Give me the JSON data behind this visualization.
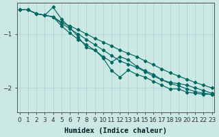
{
  "xlabel": "Humidex (Indice chaleur)",
  "bg_color": "#cce8e4",
  "line_color": "#006860",
  "grid_color": "#b0d8d4",
  "ylim": [
    -2.45,
    -0.42
  ],
  "xlim": [
    -0.3,
    23.3
  ],
  "yticks": [
    -2,
    -1
  ],
  "xticks": [
    0,
    1,
    2,
    3,
    4,
    5,
    6,
    7,
    8,
    9,
    10,
    11,
    12,
    13,
    14,
    15,
    16,
    17,
    18,
    19,
    20,
    21,
    22,
    23
  ],
  "x": [
    0,
    1,
    2,
    3,
    4,
    5,
    6,
    7,
    8,
    9,
    10,
    11,
    12,
    13,
    14,
    15,
    16,
    17,
    18,
    19,
    20,
    21,
    22,
    23
  ],
  "line1": [
    -0.55,
    -0.55,
    -0.62,
    -0.65,
    -0.68,
    -0.78,
    -0.85,
    -0.92,
    -1.0,
    -1.08,
    -1.15,
    -1.22,
    -1.3,
    -1.36,
    -1.42,
    -1.5,
    -1.57,
    -1.65,
    -1.72,
    -1.78,
    -1.84,
    -1.9,
    -1.95,
    -2.0
  ],
  "line2": [
    -0.55,
    -0.55,
    -0.62,
    -0.65,
    -0.68,
    -0.8,
    -0.9,
    -1.0,
    -1.1,
    -1.2,
    -1.3,
    -1.4,
    -1.5,
    -1.56,
    -1.62,
    -1.7,
    -1.78,
    -1.85,
    -1.92,
    -1.96,
    -2.02,
    -2.07,
    -2.1,
    -2.12
  ],
  "line3": [
    -0.55,
    -0.55,
    -0.62,
    -0.65,
    -0.5,
    -0.72,
    -0.88,
    -1.05,
    -1.25,
    -1.3,
    -1.42,
    -1.52,
    -1.42,
    -1.48,
    -1.6,
    -1.68,
    -1.75,
    -1.85,
    -1.9,
    -1.92,
    -1.95,
    -2.0,
    -2.05,
    -2.1
  ],
  "line4": [
    -0.55,
    -0.55,
    -0.62,
    -0.65,
    -0.68,
    -0.85,
    -0.98,
    -1.1,
    -1.2,
    -1.3,
    -1.45,
    -1.68,
    -1.8,
    -1.67,
    -1.75,
    -1.8,
    -1.88,
    -1.95,
    -2.02,
    -2.02,
    -2.08,
    -2.1,
    -2.12,
    -2.12
  ],
  "marker": "D",
  "marker_size": 2.2,
  "line_width": 0.85,
  "tick_fontsize": 6.5,
  "xlabel_fontsize": 7.5
}
